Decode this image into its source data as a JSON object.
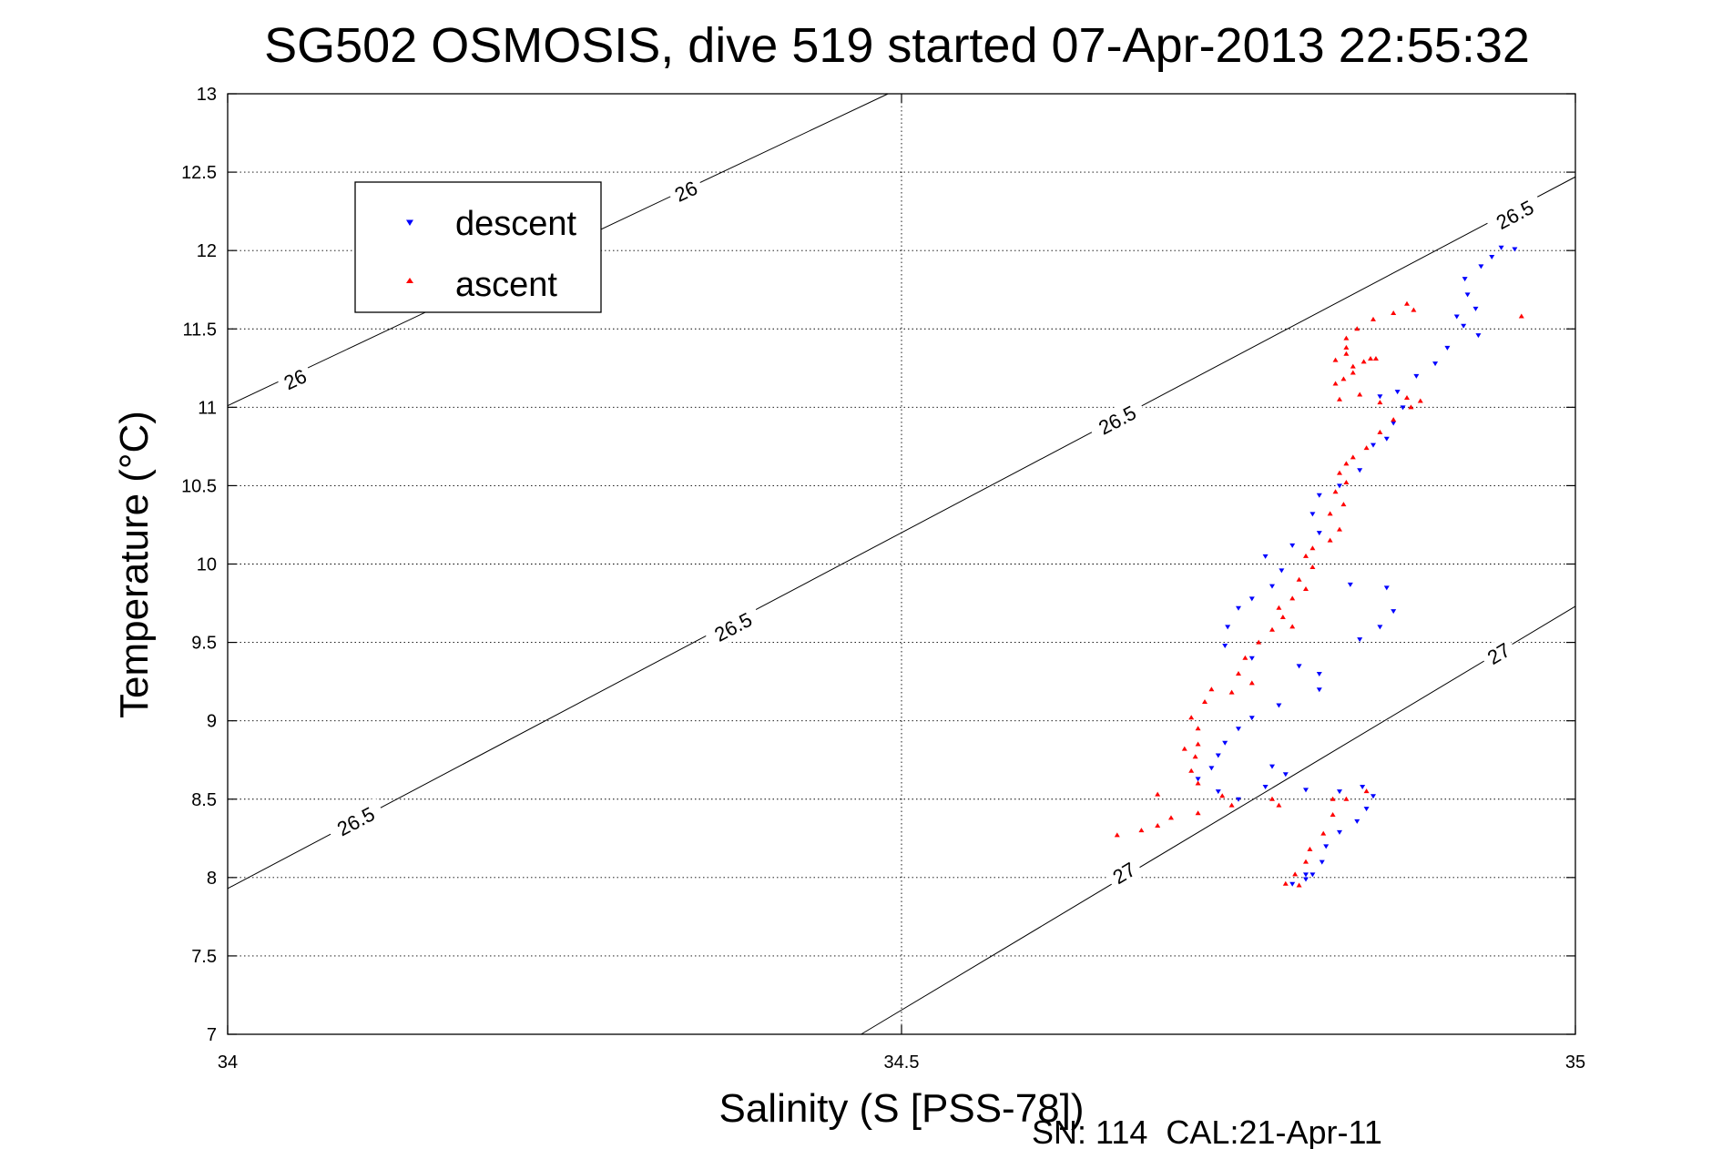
{
  "chart_data": {
    "type": "scatter",
    "title": "SG502 OSMOSIS, dive 519 started 07-Apr-2013 22:55:32",
    "xlabel": "Salinity (S [PSS-78])",
    "ylabel": "Temperature (°C)",
    "footer": "SN: 114  CAL:21-Apr-11",
    "xlim": [
      34,
      35
    ],
    "ylim": [
      7,
      13
    ],
    "xticks": [
      34,
      34.5,
      35
    ],
    "xtick_labels": [
      "34",
      "34.5",
      "35"
    ],
    "yticks": [
      7,
      7.5,
      8,
      8.5,
      9,
      9.5,
      10,
      10.5,
      11,
      11.5,
      12,
      12.5,
      13
    ],
    "ytick_labels": [
      "7",
      "7.5",
      "8",
      "8.5",
      "9",
      "9.5",
      "10",
      "10.5",
      "11",
      "11.5",
      "12",
      "12.5",
      "13"
    ],
    "grid": true,
    "legend_position": "top-left",
    "isopycnals": [
      {
        "label": "26",
        "points": [
          [
            34,
            11.01
          ],
          [
            34.49,
            13.0
          ]
        ],
        "label_positions": [
          [
            34.05,
            11.18
          ],
          [
            34.34,
            12.38
          ]
        ]
      },
      {
        "label": "26.5",
        "points": [
          [
            34,
            7.93
          ],
          [
            35,
            12.47
          ]
        ],
        "label_positions": [
          [
            34.095,
            8.36
          ],
          [
            34.375,
            9.6
          ],
          [
            34.66,
            10.92
          ],
          [
            34.955,
            12.23
          ]
        ]
      },
      {
        "label": "27",
        "points": [
          [
            34.47,
            7.0
          ],
          [
            35,
            9.73
          ]
        ],
        "label_positions": [
          [
            34.665,
            8.03
          ],
          [
            34.943,
            9.43
          ]
        ]
      }
    ],
    "series": [
      {
        "name": "descent",
        "color": "#0000ff",
        "marker": "triangle-down",
        "points": [
          [
            34.945,
            12.02
          ],
          [
            34.955,
            12.01
          ],
          [
            34.938,
            11.96
          ],
          [
            34.93,
            11.9
          ],
          [
            34.918,
            11.82
          ],
          [
            34.92,
            11.72
          ],
          [
            34.926,
            11.63
          ],
          [
            34.912,
            11.58
          ],
          [
            34.917,
            11.52
          ],
          [
            34.928,
            11.46
          ],
          [
            34.905,
            11.38
          ],
          [
            34.896,
            11.28
          ],
          [
            34.882,
            11.2
          ],
          [
            34.868,
            11.1
          ],
          [
            34.855,
            11.07
          ],
          [
            34.872,
            11.0
          ],
          [
            34.865,
            10.9
          ],
          [
            34.86,
            10.8
          ],
          [
            34.85,
            10.76
          ],
          [
            34.84,
            10.6
          ],
          [
            34.825,
            10.5
          ],
          [
            34.81,
            10.44
          ],
          [
            34.805,
            10.32
          ],
          [
            34.81,
            10.2
          ],
          [
            34.79,
            10.12
          ],
          [
            34.77,
            10.05
          ],
          [
            34.782,
            9.96
          ],
          [
            34.775,
            9.86
          ],
          [
            34.76,
            9.78
          ],
          [
            34.75,
            9.72
          ],
          [
            34.742,
            9.6
          ],
          [
            34.74,
            9.48
          ],
          [
            34.76,
            9.4
          ],
          [
            34.795,
            9.35
          ],
          [
            34.81,
            9.3
          ],
          [
            34.81,
            9.2
          ],
          [
            34.78,
            9.1
          ],
          [
            34.76,
            9.02
          ],
          [
            34.75,
            8.95
          ],
          [
            34.74,
            8.86
          ],
          [
            34.735,
            8.78
          ],
          [
            34.73,
            8.7
          ],
          [
            34.72,
            8.63
          ],
          [
            34.735,
            8.55
          ],
          [
            34.75,
            8.5
          ],
          [
            34.77,
            8.58
          ],
          [
            34.785,
            8.66
          ],
          [
            34.775,
            8.71
          ],
          [
            34.8,
            8.56
          ],
          [
            34.825,
            8.55
          ],
          [
            34.842,
            8.58
          ],
          [
            34.85,
            8.52
          ],
          [
            34.845,
            8.44
          ],
          [
            34.838,
            8.36
          ],
          [
            34.825,
            8.29
          ],
          [
            34.815,
            8.2
          ],
          [
            34.812,
            8.1
          ],
          [
            34.8,
            8.02
          ],
          [
            34.79,
            7.96
          ],
          [
            34.8,
            7.99
          ],
          [
            34.805,
            8.02
          ],
          [
            34.86,
            9.85
          ],
          [
            34.833,
            9.87
          ],
          [
            34.855,
            9.6
          ],
          [
            34.865,
            9.7
          ],
          [
            34.84,
            9.52
          ]
        ]
      },
      {
        "name": "ascent",
        "color": "#ff0000",
        "marker": "triangle-up",
        "points": [
          [
            34.96,
            11.58
          ],
          [
            34.88,
            11.62
          ],
          [
            34.875,
            11.66
          ],
          [
            34.865,
            11.6
          ],
          [
            34.85,
            11.56
          ],
          [
            34.838,
            11.5
          ],
          [
            34.83,
            11.44
          ],
          [
            34.83,
            11.38
          ],
          [
            34.83,
            11.34
          ],
          [
            34.822,
            11.3
          ],
          [
            34.835,
            11.26
          ],
          [
            34.843,
            11.29
          ],
          [
            34.848,
            11.31
          ],
          [
            34.852,
            11.31
          ],
          [
            34.835,
            11.22
          ],
          [
            34.828,
            11.18
          ],
          [
            34.822,
            11.15
          ],
          [
            34.84,
            11.08
          ],
          [
            34.825,
            11.05
          ],
          [
            34.855,
            11.03
          ],
          [
            34.875,
            11.06
          ],
          [
            34.885,
            11.04
          ],
          [
            34.878,
            11.0
          ],
          [
            34.865,
            10.92
          ],
          [
            34.855,
            10.84
          ],
          [
            34.845,
            10.74
          ],
          [
            34.835,
            10.68
          ],
          [
            34.83,
            10.64
          ],
          [
            34.825,
            10.58
          ],
          [
            34.83,
            10.52
          ],
          [
            34.822,
            10.46
          ],
          [
            34.828,
            10.38
          ],
          [
            34.818,
            10.32
          ],
          [
            34.825,
            10.22
          ],
          [
            34.818,
            10.15
          ],
          [
            34.805,
            10.1
          ],
          [
            34.8,
            10.05
          ],
          [
            34.805,
            9.98
          ],
          [
            34.795,
            9.9
          ],
          [
            34.8,
            9.84
          ],
          [
            34.79,
            9.78
          ],
          [
            34.78,
            9.72
          ],
          [
            34.783,
            9.66
          ],
          [
            34.79,
            9.6
          ],
          [
            34.775,
            9.58
          ],
          [
            34.765,
            9.5
          ],
          [
            34.755,
            9.4
          ],
          [
            34.75,
            9.3
          ],
          [
            34.76,
            9.24
          ],
          [
            34.745,
            9.18
          ],
          [
            34.73,
            9.2
          ],
          [
            34.725,
            9.12
          ],
          [
            34.715,
            9.02
          ],
          [
            34.72,
            8.95
          ],
          [
            34.72,
            8.85
          ],
          [
            34.718,
            8.77
          ],
          [
            34.715,
            8.68
          ],
          [
            34.72,
            8.6
          ],
          [
            34.738,
            8.52
          ],
          [
            34.745,
            8.46
          ],
          [
            34.72,
            8.41
          ],
          [
            34.7,
            8.38
          ],
          [
            34.69,
            8.33
          ],
          [
            34.678,
            8.3
          ],
          [
            34.66,
            8.27
          ],
          [
            34.69,
            8.53
          ],
          [
            34.71,
            8.82
          ],
          [
            34.775,
            8.5
          ],
          [
            34.78,
            8.46
          ],
          [
            34.82,
            8.5
          ],
          [
            34.845,
            8.55
          ],
          [
            34.83,
            8.5
          ],
          [
            34.82,
            8.4
          ],
          [
            34.813,
            8.28
          ],
          [
            34.803,
            8.18
          ],
          [
            34.8,
            8.1
          ],
          [
            34.792,
            8.02
          ],
          [
            34.785,
            7.96
          ],
          [
            34.795,
            7.95
          ]
        ]
      }
    ]
  }
}
